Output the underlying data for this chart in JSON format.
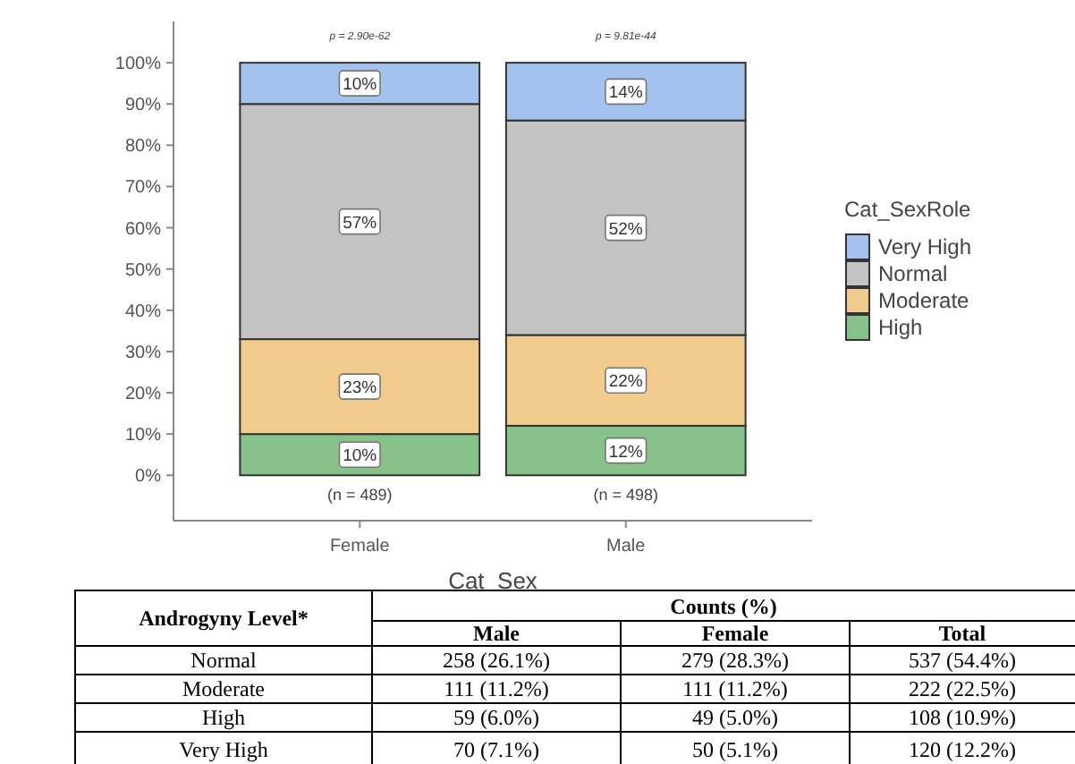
{
  "chart_data": {
    "type": "bar",
    "stacked": true,
    "xlabel": "Cat_Sex",
    "legend_title": "Cat_SexRole",
    "legend": "right",
    "grid": false,
    "categories": [
      "Female",
      "Male"
    ],
    "ylim": [
      -11,
      110
    ],
    "yticks": [
      {
        "value": 0,
        "label": "0%"
      },
      {
        "value": 10,
        "label": "10%"
      },
      {
        "value": 20,
        "label": "20%"
      },
      {
        "value": 30,
        "label": "30%"
      },
      {
        "value": 40,
        "label": "40%"
      },
      {
        "value": 50,
        "label": "50%"
      },
      {
        "value": 60,
        "label": "60%"
      },
      {
        "value": 70,
        "label": "70%"
      },
      {
        "value": 80,
        "label": "80%"
      },
      {
        "value": 90,
        "label": "90%"
      },
      {
        "value": 100,
        "label": "100%"
      }
    ],
    "series": [
      {
        "name": "High",
        "color": "#86c289",
        "values": [
          10,
          12
        ],
        "value_labels": [
          "10%",
          "12%"
        ]
      },
      {
        "name": "Moderate",
        "color": "#f0cb8c",
        "values": [
          23,
          22
        ],
        "value_labels": [
          "23%",
          "22%"
        ]
      },
      {
        "name": "Normal",
        "color": "#c3c3c3",
        "values": [
          57,
          52
        ],
        "value_labels": [
          "57%",
          "52%"
        ]
      },
      {
        "name": "Very High",
        "color": "#a4c2ee",
        "values": [
          10,
          14
        ],
        "value_labels": [
          "10%",
          "14%"
        ]
      }
    ],
    "annotations": [
      "p = 2.90e-62",
      "p = 9.81e-44",
      "(n = 489)",
      "(n = 498)",
      "Androgyny Level*",
      "Counts (%)",
      "Male",
      "Female",
      "Total",
      "Normal",
      "258 (26.1%)",
      "279 (28.3%)",
      "537 (54.4%)",
      "Moderate",
      "111 (11.2%)",
      "111 (11.2%)",
      "222 (22.5%)",
      "High",
      "59 (6.0%)",
      "49 (5.0%)",
      "108 (10.9%)",
      "Very High",
      "70 (7.1%)",
      "50 (5.1%)",
      "120 (12.2%)"
    ]
  }
}
